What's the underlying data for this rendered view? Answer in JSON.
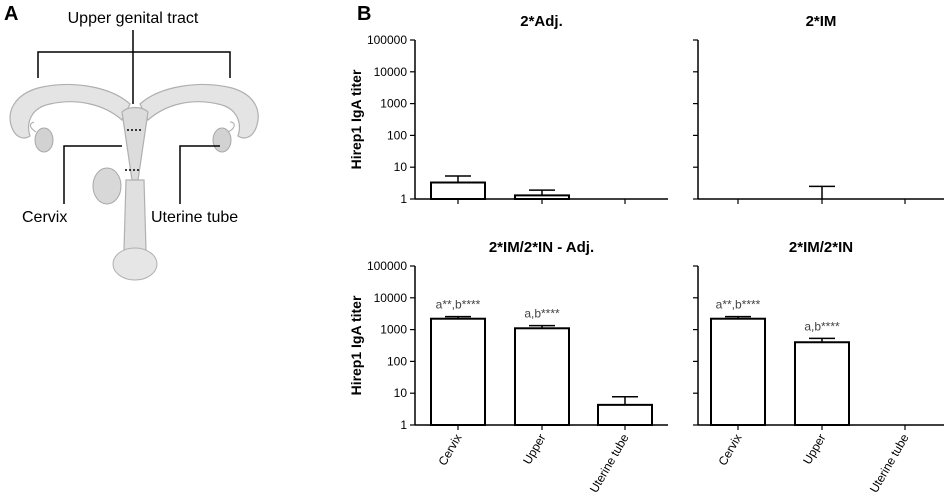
{
  "panel_a": {
    "letter": "A",
    "labels": {
      "upper_genital_tract": "Upper genital tract",
      "cervix": "Cervix",
      "uterine_tube": "Uterine tube"
    }
  },
  "panel_b": {
    "letter": "B",
    "ylabel": "Hirep1 IgA titer"
  },
  "chart_data": [
    {
      "type": "bar",
      "title": "2*Adj.",
      "categories": [
        "Cervix",
        "Upper",
        "Uterine tube"
      ],
      "values": [
        3.3,
        1.3,
        0
      ],
      "errors": [
        2.0,
        0.6,
        0
      ],
      "annotations": [
        "",
        "",
        ""
      ],
      "ylabel": "Hirep1 IgA titer",
      "yscale": "log",
      "ylim": [
        1,
        100000
      ],
      "yticks": [
        "1",
        "10",
        "100",
        "1000",
        "10000",
        "100000"
      ],
      "show_category_labels": false
    },
    {
      "type": "bar",
      "title": "2*IM",
      "categories": [
        "Cervix",
        "Upper",
        "Uterine tube"
      ],
      "values": [
        0,
        0,
        0
      ],
      "errors": [
        0,
        1.5,
        0
      ],
      "annotations": [
        "",
        "",
        ""
      ],
      "ylabel": "",
      "yscale": "log",
      "ylim": [
        1,
        100000
      ],
      "yticks": [],
      "show_category_labels": false
    },
    {
      "type": "bar",
      "title": "2*IM/2*IN - Adj.",
      "categories": [
        "Cervix",
        "Upper",
        "Uterine tube"
      ],
      "values": [
        2200,
        1100,
        4.3
      ],
      "errors": [
        350,
        230,
        3.4
      ],
      "annotations": [
        "a**,b****",
        "a,b****",
        ""
      ],
      "ylabel": "Hirep1 IgA titer",
      "yscale": "log",
      "ylim": [
        1,
        100000
      ],
      "yticks": [
        "1",
        "10",
        "100",
        "1000",
        "10000",
        "100000"
      ],
      "show_category_labels": true
    },
    {
      "type": "bar",
      "title": "2*IM/2*IN",
      "categories": [
        "Cervix",
        "Upper",
        "Uterine tube"
      ],
      "values": [
        2200,
        400,
        0
      ],
      "errors": [
        350,
        130,
        0
      ],
      "annotations": [
        "a**,b****",
        "a,b****",
        ""
      ],
      "ylabel": "",
      "yscale": "log",
      "ylim": [
        1,
        100000
      ],
      "yticks": [],
      "show_category_labels": true
    }
  ]
}
